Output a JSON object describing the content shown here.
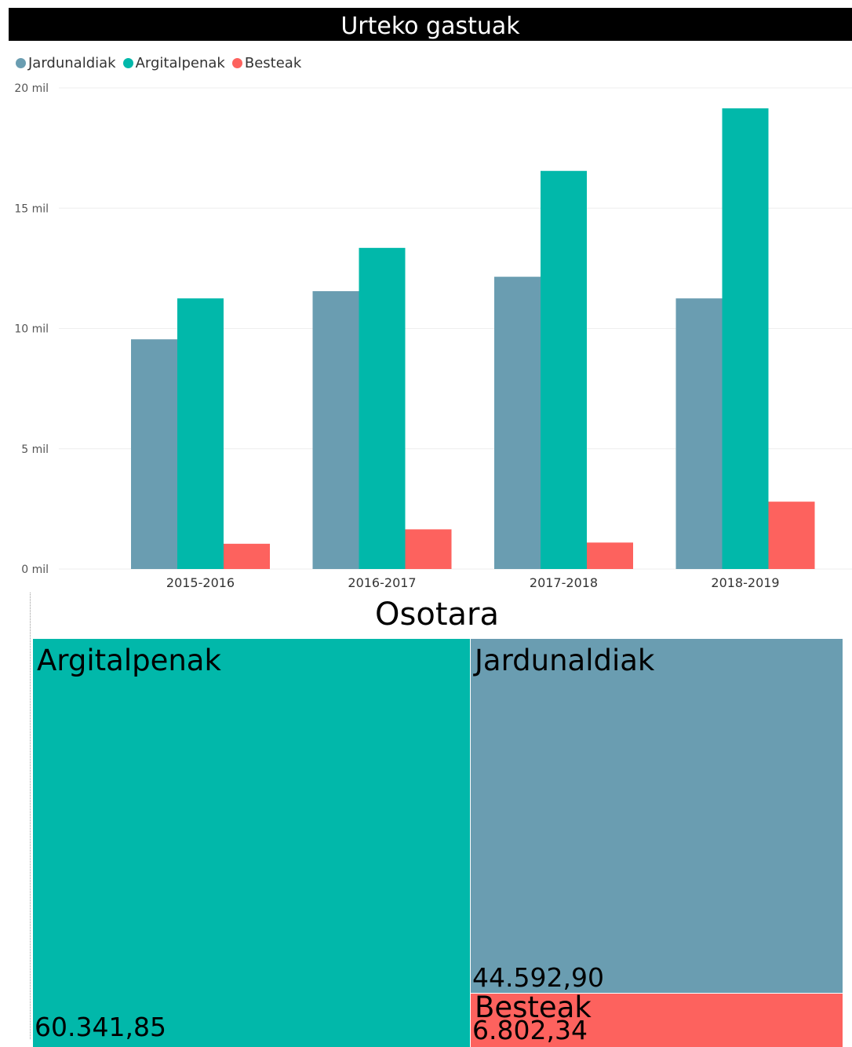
{
  "header": {
    "title": "Urteko gastuak"
  },
  "legend": [
    {
      "label": "Jardunaldiak",
      "color": "#6a9db1"
    },
    {
      "label": "Argitalpenak",
      "color": "#01b8aa"
    },
    {
      "label": "Besteak",
      "color": "#fd625e"
    }
  ],
  "chart_data": [
    {
      "type": "bar",
      "title": "Urteko gastuak",
      "categories": [
        "2015-2016",
        "2016-2017",
        "2017-2018",
        "2018-2019"
      ],
      "series": [
        {
          "name": "Jardunaldiak",
          "color": "#6a9db1",
          "values": [
            9550,
            11550,
            12150,
            11250
          ]
        },
        {
          "name": "Argitalpenak",
          "color": "#01b8aa",
          "values": [
            11250,
            13350,
            16550,
            19150
          ]
        },
        {
          "name": "Besteak",
          "color": "#fd625e",
          "values": [
            1050,
            1650,
            1100,
            2800
          ]
        }
      ],
      "ylim": [
        0,
        20000
      ],
      "yticks": [
        {
          "value": 0,
          "label": "0 mil"
        },
        {
          "value": 5000,
          "label": "5 mil"
        },
        {
          "value": 10000,
          "label": "10 mil"
        },
        {
          "value": 15000,
          "label": "15 mil"
        },
        {
          "value": 20000,
          "label": "20 mil"
        }
      ],
      "grid": true,
      "legend_position": "top-left"
    },
    {
      "type": "treemap",
      "title": "Osotara",
      "items": [
        {
          "name": "Argitalpenak",
          "value": 60341.85,
          "label": "60.341,85",
          "color": "#01b8aa"
        },
        {
          "name": "Jardunaldiak",
          "value": 44592.9,
          "label": "44.592,90",
          "color": "#6a9db1"
        },
        {
          "name": "Besteak",
          "value": 6802.34,
          "label": "6.802,34",
          "color": "#fd625e"
        }
      ]
    }
  ]
}
